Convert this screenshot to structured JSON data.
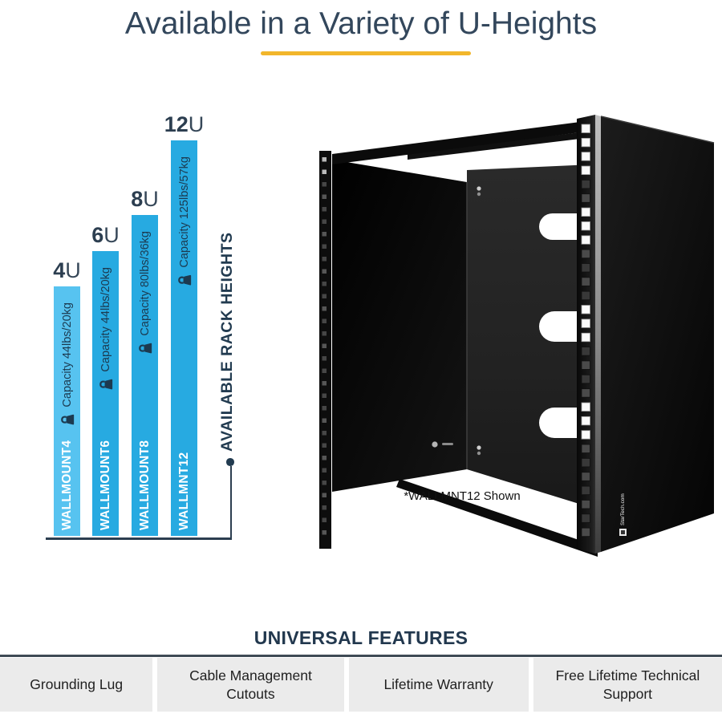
{
  "title": {
    "text": "Available in a Variety of U-Heights",
    "underline_color": "#F2B62B",
    "text_color": "#33475C"
  },
  "chart": {
    "axis_label": "AVAILABLE RACK HEIGHTS",
    "bars": [
      {
        "u_num": "4",
        "u_unit": "U",
        "model": "WALLMOUNT4",
        "capacity": "Capacity 44lbs/20kg",
        "color": "#57C3F0"
      },
      {
        "u_num": "6",
        "u_unit": "U",
        "model": "WALLMOUNT6",
        "capacity": "Capacity 44lbs/20kg",
        "color": "#27AAE1"
      },
      {
        "u_num": "8",
        "u_unit": "U",
        "model": "WALLMOUNT8",
        "capacity": "Capacity 80lbs/36kg",
        "color": "#27AAE1"
      },
      {
        "u_num": "12",
        "u_unit": "U",
        "model": "WALLMNT12",
        "capacity": "Capacity 125lbs/57kg",
        "color": "#27AAE1"
      }
    ],
    "icons": {
      "capacity_icon": "kettlebell-weight"
    },
    "bracket_color": "#2C3E50"
  },
  "chart_data": {
    "type": "bar",
    "orientation": "vertical",
    "title": "Available in a Variety of U-Heights",
    "categories": [
      "WALLMOUNT4",
      "WALLMOUNT6",
      "WALLMOUNT8",
      "WALLMNT12"
    ],
    "values": [
      4,
      6,
      8,
      12
    ],
    "value_unit": "U",
    "value_labels": [
      "4U",
      "6U",
      "8U",
      "12U"
    ],
    "capacity_labels": [
      "Capacity 44lbs/20kg",
      "Capacity 44lbs/20kg",
      "Capacity 80lbs/36kg",
      "Capacity 125lbs/57kg"
    ],
    "axis_label": "AVAILABLE RACK HEIGHTS",
    "bar_colors": [
      "#57C3F0",
      "#27AAE1",
      "#27AAE1",
      "#27AAE1"
    ],
    "grid": false,
    "legend": false
  },
  "product": {
    "caption": "*WALLMNT12 Shown",
    "logo_text": "StarTech.com"
  },
  "features": {
    "heading": "UNIVERSAL FEATURES",
    "items": [
      "Grounding Lug",
      "Cable Management Cutouts",
      "Lifetime Warranty",
      "Free Lifetime Technical Support"
    ]
  }
}
